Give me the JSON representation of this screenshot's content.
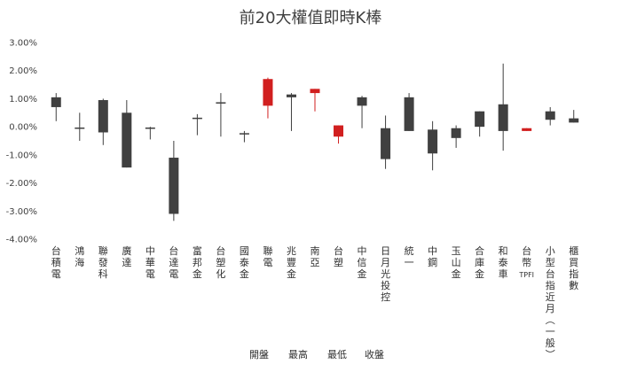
{
  "chart_data": {
    "type": "candlestick",
    "title": "前20大權值即時K棒",
    "ylim": [
      -4,
      3
    ],
    "yticks": [
      3,
      2,
      1,
      0,
      -1,
      -2,
      -3,
      -4
    ],
    "ytick_labels": [
      "3.00%",
      "2.00%",
      "1.00%",
      "0.00%",
      "-1.00%",
      "-2.00%",
      "-3.00%",
      "-4.00%"
    ],
    "up_color": "#d11f1f",
    "down_color": "#404040",
    "wick_color": "#404040",
    "legend": [
      "開盤",
      "最高",
      "最低",
      "收盤"
    ],
    "categories": [
      "台積電",
      "鴻海",
      "聯發科",
      "廣達",
      "中華電",
      "台達電",
      "富邦金",
      "台塑化",
      "國泰金",
      "聯電",
      "兆豐金",
      "南亞",
      "台塑",
      "中信金",
      "日月光投控",
      "統一",
      "中鋼",
      "玉山金",
      "合庫金",
      "和泰車",
      "台幣TPFI",
      "小型台指近月(一般)",
      "櫃買指數"
    ],
    "series": {
      "open": [
        1.05,
        -0.05,
        0.95,
        0.5,
        -0.05,
        -1.1,
        0.3,
        0.85,
        -0.25,
        0.75,
        1.15,
        1.2,
        -0.35,
        1.05,
        -0.05,
        1.05,
        -0.1,
        -0.05,
        0.55,
        0.8,
        -0.15,
        0.55,
        0.3
      ],
      "high": [
        1.2,
        0.5,
        1.0,
        0.95,
        0.0,
        -0.5,
        0.45,
        1.2,
        -0.15,
        1.75,
        1.2,
        1.35,
        0.05,
        1.1,
        0.4,
        1.2,
        0.2,
        0.05,
        0.55,
        2.25,
        -0.05,
        0.7,
        0.6
      ],
      "low": [
        0.2,
        -0.5,
        -0.65,
        -1.45,
        -0.45,
        -3.35,
        -0.3,
        -0.35,
        -0.55,
        0.3,
        -0.15,
        0.55,
        -0.6,
        -0.05,
        -1.5,
        -0.15,
        -1.55,
        -0.75,
        -0.35,
        -0.85,
        -0.15,
        0.05,
        0.15
      ],
      "close": [
        0.7,
        -0.05,
        -0.2,
        -1.45,
        -0.05,
        -3.1,
        0.3,
        0.85,
        -0.25,
        1.7,
        1.05,
        1.35,
        0.05,
        0.75,
        -1.15,
        -0.15,
        -0.95,
        -0.4,
        0.0,
        -0.15,
        -0.05,
        0.25,
        0.15
      ]
    }
  }
}
